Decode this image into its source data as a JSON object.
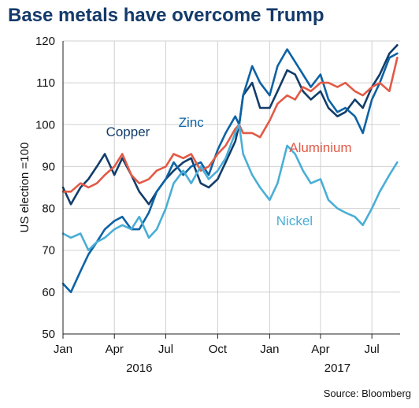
{
  "title": "Base metals have overcome Trump",
  "source": "Source: Bloomberg",
  "chart_data": {
    "type": "line",
    "title": "Base metals have overcome Trump",
    "ylabel": "US election =100",
    "xlabel": "",
    "ylim": [
      50,
      120
    ],
    "yticks": [
      50,
      60,
      70,
      80,
      90,
      100,
      110,
      120
    ],
    "xlim": [
      "2016-01-01",
      "2017-08-20"
    ],
    "xticks": [
      {
        "date": "2016-01-01",
        "label": "Jan"
      },
      {
        "date": "2016-04-01",
        "label": "Apr"
      },
      {
        "date": "2016-07-01",
        "label": "Jul"
      },
      {
        "date": "2016-10-01",
        "label": "Oct"
      },
      {
        "date": "2017-01-01",
        "label": "Jan"
      },
      {
        "date": "2017-04-01",
        "label": "Apr"
      },
      {
        "date": "2017-07-01",
        "label": "Jul"
      }
    ],
    "year_labels": [
      {
        "center": "2016-05-15",
        "label": "2016"
      },
      {
        "center": "2017-05-01",
        "label": "2017"
      }
    ],
    "grid": true,
    "series": [
      {
        "name": "Copper",
        "color": "#123d6a",
        "x": [
          "2016-01-01",
          "2016-01-15",
          "2016-02-01",
          "2016-02-15",
          "2016-03-01",
          "2016-03-15",
          "2016-04-01",
          "2016-04-15",
          "2016-05-01",
          "2016-05-15",
          "2016-06-01",
          "2016-06-15",
          "2016-07-01",
          "2016-07-15",
          "2016-08-01",
          "2016-08-15",
          "2016-09-01",
          "2016-09-15",
          "2016-10-01",
          "2016-10-15",
          "2016-11-01",
          "2016-11-08",
          "2016-11-15",
          "2016-12-01",
          "2016-12-15",
          "2017-01-01",
          "2017-01-15",
          "2017-02-01",
          "2017-02-15",
          "2017-03-01",
          "2017-03-15",
          "2017-04-01",
          "2017-04-15",
          "2017-05-01",
          "2017-05-15",
          "2017-06-01",
          "2017-06-15",
          "2017-07-01",
          "2017-07-15",
          "2017-08-01",
          "2017-08-15"
        ],
        "values": [
          85,
          81,
          85,
          87,
          90,
          93,
          88,
          92,
          88,
          84,
          81,
          84,
          87,
          89,
          91,
          92,
          86,
          85,
          87,
          91,
          96,
          100,
          107,
          110,
          104,
          104,
          108,
          113,
          112,
          108,
          106,
          108,
          104,
          102,
          103,
          106,
          104,
          109,
          112,
          117,
          119
        ]
      },
      {
        "name": "Zinc",
        "color": "#0d62a4",
        "x": [
          "2016-01-01",
          "2016-01-15",
          "2016-02-01",
          "2016-02-15",
          "2016-03-01",
          "2016-03-15",
          "2016-04-01",
          "2016-04-15",
          "2016-05-01",
          "2016-05-15",
          "2016-06-01",
          "2016-06-15",
          "2016-07-01",
          "2016-07-15",
          "2016-08-01",
          "2016-08-15",
          "2016-09-01",
          "2016-09-15",
          "2016-10-01",
          "2016-10-15",
          "2016-11-01",
          "2016-11-08",
          "2016-11-15",
          "2016-12-01",
          "2016-12-15",
          "2017-01-01",
          "2017-01-15",
          "2017-02-01",
          "2017-02-15",
          "2017-03-01",
          "2017-03-15",
          "2017-04-01",
          "2017-04-15",
          "2017-05-01",
          "2017-05-15",
          "2017-06-01",
          "2017-06-15",
          "2017-07-01",
          "2017-07-15",
          "2017-08-01",
          "2017-08-15"
        ],
        "values": [
          62,
          60,
          65,
          69,
          72,
          75,
          77,
          78,
          75,
          75,
          79,
          84,
          87,
          91,
          88,
          90,
          91,
          88,
          94,
          98,
          102,
          100,
          107,
          114,
          110,
          107,
          114,
          118,
          115,
          112,
          109,
          112,
          106,
          103,
          104,
          102,
          98,
          106,
          110,
          116,
          117
        ]
      },
      {
        "name": "Aluminium",
        "color": "#e25a46",
        "x": [
          "2016-01-01",
          "2016-01-15",
          "2016-02-01",
          "2016-02-15",
          "2016-03-01",
          "2016-03-15",
          "2016-04-01",
          "2016-04-15",
          "2016-05-01",
          "2016-05-15",
          "2016-06-01",
          "2016-06-15",
          "2016-07-01",
          "2016-07-15",
          "2016-08-01",
          "2016-08-15",
          "2016-09-01",
          "2016-09-15",
          "2016-10-01",
          "2016-10-15",
          "2016-11-01",
          "2016-11-08",
          "2016-11-15",
          "2016-12-01",
          "2016-12-15",
          "2017-01-01",
          "2017-01-15",
          "2017-02-01",
          "2017-02-15",
          "2017-03-01",
          "2017-03-15",
          "2017-04-01",
          "2017-04-15",
          "2017-05-01",
          "2017-05-15",
          "2017-06-01",
          "2017-06-15",
          "2017-07-01",
          "2017-07-15",
          "2017-08-01",
          "2017-08-15"
        ],
        "values": [
          84,
          84,
          86,
          85,
          86,
          88,
          90,
          93,
          88,
          86,
          87,
          89,
          90,
          93,
          92,
          93,
          89,
          90,
          93,
          95,
          99,
          100,
          98,
          98,
          97,
          101,
          105,
          107,
          106,
          109,
          108,
          110,
          110,
          109,
          110,
          108,
          107,
          109,
          110,
          108,
          116
        ]
      },
      {
        "name": "Nickel",
        "color": "#4aaed6",
        "x": [
          "2016-01-01",
          "2016-01-15",
          "2016-02-01",
          "2016-02-15",
          "2016-03-01",
          "2016-03-15",
          "2016-04-01",
          "2016-04-15",
          "2016-05-01",
          "2016-05-15",
          "2016-06-01",
          "2016-06-15",
          "2016-07-01",
          "2016-07-15",
          "2016-08-01",
          "2016-08-15",
          "2016-09-01",
          "2016-09-15",
          "2016-10-01",
          "2016-10-15",
          "2016-11-01",
          "2016-11-08",
          "2016-11-15",
          "2016-12-01",
          "2016-12-15",
          "2017-01-01",
          "2017-01-15",
          "2017-02-01",
          "2017-02-15",
          "2017-03-01",
          "2017-03-15",
          "2017-04-01",
          "2017-04-15",
          "2017-05-01",
          "2017-05-15",
          "2017-06-01",
          "2017-06-15",
          "2017-07-01",
          "2017-07-15",
          "2017-08-01",
          "2017-08-15"
        ],
        "values": [
          74,
          73,
          74,
          70,
          72,
          73,
          75,
          76,
          75,
          78,
          73,
          75,
          80,
          86,
          89,
          86,
          90,
          87,
          89,
          92,
          98,
          100,
          93,
          88,
          85,
          82,
          86,
          95,
          93,
          89,
          86,
          87,
          82,
          80,
          79,
          78,
          76,
          80,
          84,
          88,
          91
        ]
      }
    ],
    "annotations": [
      {
        "text": "Copper",
        "series": "Copper",
        "date": "2016-04-25",
        "value": 97.2
      },
      {
        "text": "Zinc",
        "series": "Zinc",
        "date": "2016-08-15",
        "value": 99.5
      },
      {
        "text": "Aluminium",
        "series": "Aluminium",
        "date": "2017-04-01",
        "value": 93.5
      },
      {
        "text": "Nickel",
        "series": "Nickel",
        "date": "2017-02-14",
        "value": 76
      }
    ]
  }
}
